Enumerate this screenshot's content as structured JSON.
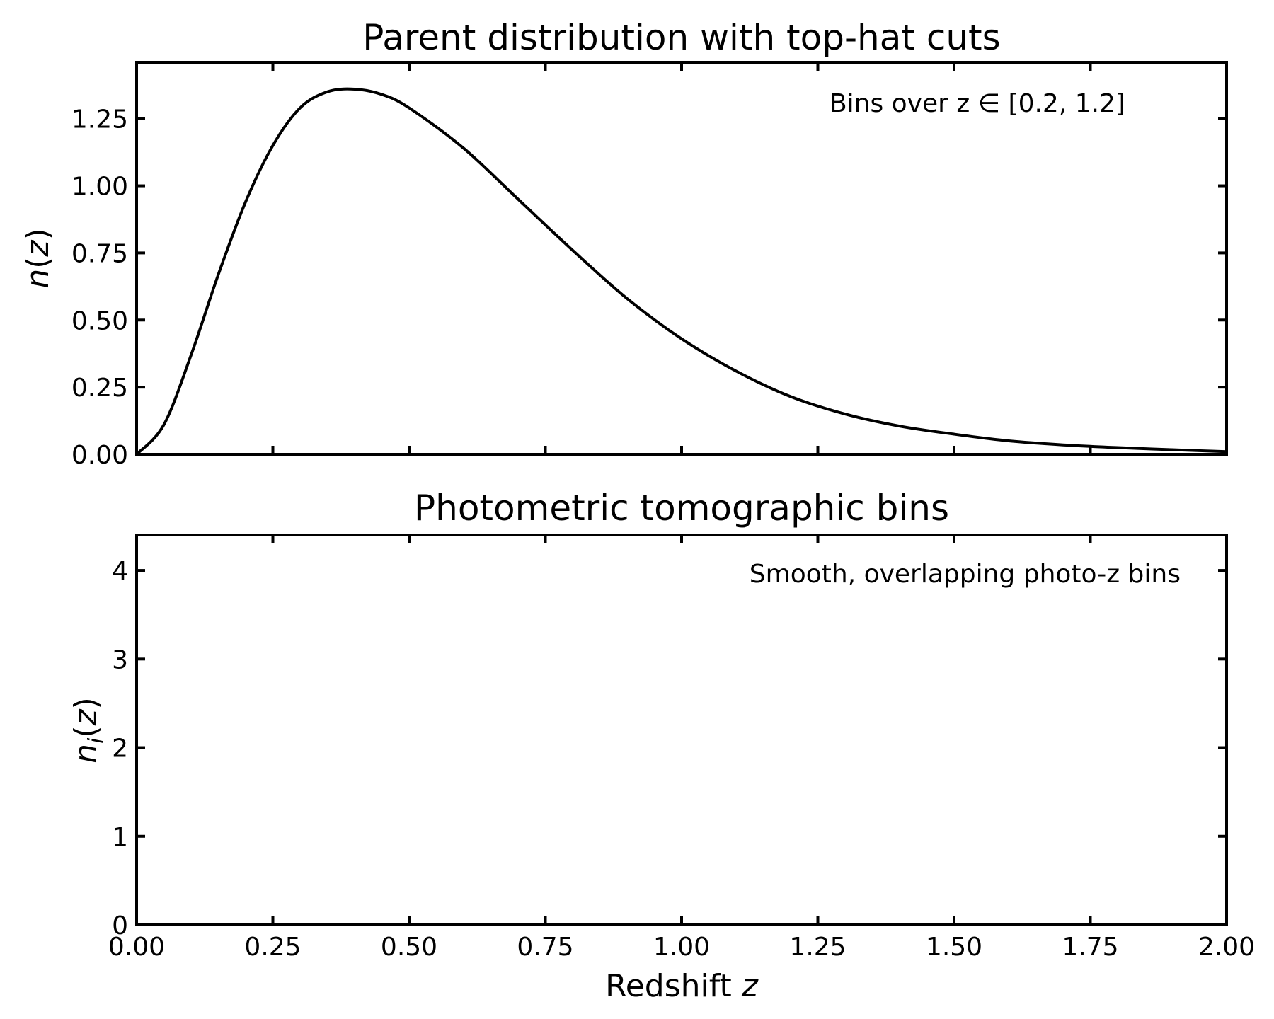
{
  "chart_data": [
    {
      "type": "line",
      "title": "Parent distribution with top-hat cuts",
      "xlabel": "",
      "ylabel": "n(z)",
      "xlim": [
        0,
        2
      ],
      "ylim": [
        0,
        1.46
      ],
      "x_ticks": [
        0,
        0.25,
        0.5,
        0.75,
        1.0,
        1.25,
        1.5,
        1.75,
        2.0
      ],
      "y_ticks": [
        0,
        0.25,
        0.5,
        0.75,
        1.0,
        1.25
      ],
      "y_tick_labels": [
        "0.00",
        "0.25",
        "0.50",
        "0.75",
        "1.00",
        "1.25"
      ],
      "annotation": "Bins over z ∈ [0.2, 1.2]",
      "grid": false,
      "series": [
        {
          "x": [
            0.0,
            0.05,
            0.1,
            0.15,
            0.2,
            0.25,
            0.3,
            0.35,
            0.4,
            0.45,
            0.5,
            0.6,
            0.7,
            0.8,
            0.9,
            1.0,
            1.1,
            1.2,
            1.3,
            1.4,
            1.5,
            1.6,
            1.7,
            1.8,
            1.9,
            2.0
          ],
          "values": [
            0.0,
            0.11,
            0.37,
            0.67,
            0.94,
            1.15,
            1.29,
            1.35,
            1.36,
            1.34,
            1.29,
            1.14,
            0.95,
            0.76,
            0.58,
            0.43,
            0.31,
            0.215,
            0.15,
            0.105,
            0.075,
            0.05,
            0.035,
            0.025,
            0.017,
            0.01
          ]
        }
      ]
    },
    {
      "type": "line",
      "title": "Photometric tomographic bins",
      "xlabel": "Redshift z",
      "ylabel": "n_i(z)",
      "xlim": [
        0,
        2
      ],
      "ylim": [
        0,
        4.4
      ],
      "x_ticks": [
        0,
        0.25,
        0.5,
        0.75,
        1.0,
        1.25,
        1.5,
        1.75,
        2.0
      ],
      "x_tick_labels": [
        "0.00",
        "0.25",
        "0.50",
        "0.75",
        "1.00",
        "1.25",
        "1.50",
        "1.75",
        "2.00"
      ],
      "y_ticks": [
        0,
        1,
        2,
        3,
        4
      ],
      "y_tick_labels": [
        "0",
        "1",
        "2",
        "3",
        "4"
      ],
      "annotation": "Smooth, overlapping photo-z bins",
      "grid": false,
      "series": []
    }
  ]
}
